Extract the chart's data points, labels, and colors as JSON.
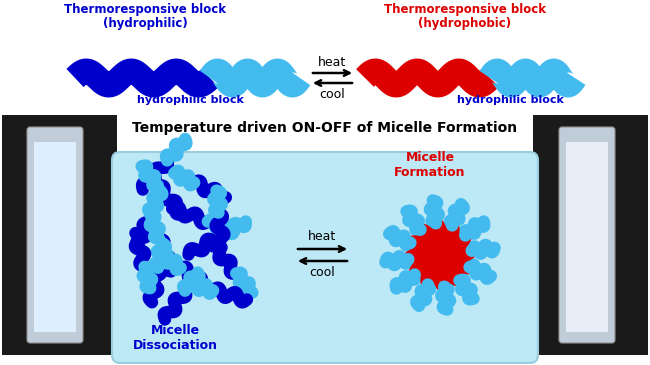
{
  "bg_color": "#ffffff",
  "blue_dark": "#0000cc",
  "cyan_light": "#44bbee",
  "red_color": "#dd0000",
  "black": "#000000",
  "top_label_left_line1": "Thermoresponsive block",
  "top_label_left_line2": "(hydrophilic)",
  "top_label_right_line1": "Thermoresponsive block",
  "top_label_right_line2": "(hydrophobic)",
  "top_label_bot_left": "hydrophilic block",
  "top_label_bot_right": "hydrophilic block",
  "heat_text": "heat",
  "cool_text": "cool",
  "main_title": "Temperature driven ON-OFF of Micelle Formation",
  "micelle_formation": "Micelle\nFormation",
  "micelle_dissociation": "Micelle\nDissociation",
  "box_color": "#bde8f5",
  "box_edge": "#99ccdd",
  "photo_dark": "#1a1a1a",
  "photo_tube_fill": "#c8d8e8",
  "photo_liquid_left": "#ddeeff",
  "photo_liquid_right": "#e8eef8"
}
